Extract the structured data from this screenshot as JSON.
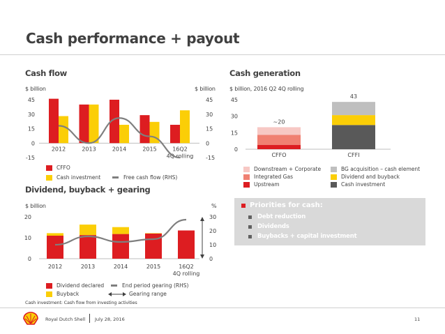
{
  "page": {
    "title": "Cash performance + payout",
    "footnote": "Cash investment: Cash flow from investing activities",
    "company": "Royal Dutch Shell",
    "date": "July 28, 2016",
    "page_number": "11"
  },
  "priorities": {
    "title": "Priorities for cash:",
    "items": [
      "Debt reduction",
      "Dividends",
      "Buybacks + capital investment"
    ]
  },
  "colors": {
    "red": "#dd1d21",
    "yellow": "#fbce07",
    "grey_line": "#7f7f7f",
    "pink_light": "#f7c8c4",
    "salmon": "#f08072",
    "bg_light": "#bfbfbf",
    "cash_inv_dark": "#595959",
    "panel_grey": "#d9d9d9"
  },
  "chart_data": [
    {
      "id": "cash_flow",
      "type": "bar",
      "title": "Cash flow",
      "ylabel": "$ billion",
      "y2label": "$ billion",
      "categories": [
        "2012",
        "2013",
        "2014",
        "2015",
        "16Q2\n4Q rolling"
      ],
      "ylim": [
        -15,
        45
      ],
      "yticks": [
        "45",
        "30",
        "15",
        "0",
        "-15"
      ],
      "y2ticks": [
        "45",
        "30",
        "15",
        "0",
        "-15"
      ],
      "series": [
        {
          "name": "CFFO",
          "values": [
            46,
            40,
            45,
            29,
            19
          ]
        },
        {
          "name": "Cash investment",
          "values": [
            28,
            40,
            19,
            22,
            34
          ]
        },
        {
          "name": "Free cash flow (RHS)",
          "type": "line",
          "values": [
            18,
            0,
            26,
            7,
            -15
          ]
        }
      ]
    },
    {
      "id": "cash_generation",
      "type": "bar",
      "stacked": true,
      "title": "Cash generation",
      "ylabel": "$ billion, 2016 Q2 4Q rolling",
      "categories": [
        "CFFO",
        "CFFI"
      ],
      "ylim": [
        0,
        45
      ],
      "yticks": [
        "45",
        "30",
        "15",
        "0"
      ],
      "totals": [
        "~20",
        "43"
      ],
      "series": [
        {
          "name": "Upstream",
          "values": [
            4,
            0
          ]
        },
        {
          "name": "Integrated Gas",
          "values": [
            9,
            0
          ]
        },
        {
          "name": "Downstream + Corporate",
          "values": [
            7,
            0
          ]
        },
        {
          "name": "Cash investment",
          "values": [
            0,
            22
          ]
        },
        {
          "name": "Dividend and buyback",
          "values": [
            0,
            9
          ]
        },
        {
          "name": "BG acquisition – cash element",
          "values": [
            0,
            12
          ]
        }
      ]
    },
    {
      "id": "dividend_buyback_gearing",
      "type": "bar",
      "stacked": true,
      "title": "Dividend, buyback + gearing",
      "ylabel": "$ billion",
      "y2label": "%",
      "categories": [
        "2012",
        "2013",
        "2014",
        "2015",
        "16Q2\n4Q rolling"
      ],
      "ylim": [
        0,
        20
      ],
      "y2lim": [
        0,
        30
      ],
      "yticks": [
        "20",
        "10",
        "0"
      ],
      "y2ticks": [
        "30",
        "20",
        "10",
        "0"
      ],
      "series": [
        {
          "name": "Dividend declared",
          "values": [
            11,
            11.3,
            11.8,
            12,
            13.5
          ]
        },
        {
          "name": "Buyback",
          "values": [
            1.2,
            5,
            3.3,
            0.2,
            0
          ]
        },
        {
          "name": "End period gearing (RHS)",
          "type": "line",
          "values": [
            10,
            16,
            12,
            14,
            28
          ]
        }
      ],
      "gearing_range": {
        "label": "Gearing range",
        "low": 0,
        "high": 30
      }
    }
  ],
  "legends": {
    "cash_flow": [
      "CFFO",
      "Cash investment",
      "Free cash flow (RHS)"
    ],
    "cash_generation": [
      "Downstream + Corporate",
      "Integrated Gas",
      "Upstream",
      "BG acquisition – cash element",
      "Dividend and buyback",
      "Cash investment"
    ],
    "dividend": [
      "Dividend declared",
      "Buyback",
      "End period gearing (RHS)",
      "Gearing range"
    ]
  }
}
